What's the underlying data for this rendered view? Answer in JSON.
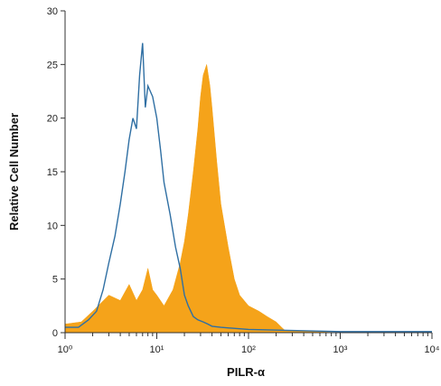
{
  "chart_data": {
    "type": "area",
    "xlabel": "PILR-α",
    "ylabel": "Relative Cell Number",
    "xscale": "log",
    "xlim": [
      1,
      10000
    ],
    "ylim": [
      0,
      30
    ],
    "grid": false,
    "x_tick_labels": [
      "10⁰",
      "10¹",
      "10²",
      "10³",
      "10⁴"
    ],
    "x_tick_values": [
      1,
      10,
      100,
      1000,
      10000
    ],
    "y_tick_values": [
      0,
      5,
      10,
      15,
      20,
      25,
      30
    ],
    "series": [
      {
        "style": "outline",
        "color": "#2f6fa3",
        "x": [
          1.0,
          1.4,
          1.8,
          2.2,
          2.6,
          3.0,
          3.5,
          4.0,
          4.5,
          5.0,
          5.5,
          6.0,
          6.5,
          7.0,
          7.5,
          8.0,
          9.0,
          10.0,
          11.0,
          12.0,
          14.0,
          16.0,
          18.0,
          20.0,
          22.0,
          25.0,
          28.0,
          32.0,
          36.0,
          40.0,
          50.0,
          100.0,
          1000.0,
          10000.0
        ],
        "y": [
          0.5,
          0.5,
          1.2,
          2.0,
          4.0,
          6.5,
          9.0,
          12.0,
          15.0,
          18.0,
          20.0,
          19.0,
          24.0,
          27.0,
          21.0,
          23.0,
          22.0,
          20.0,
          17.0,
          14.0,
          11.0,
          8.0,
          6.0,
          3.5,
          2.5,
          1.5,
          1.2,
          1.0,
          0.8,
          0.6,
          0.5,
          0.3,
          0.1,
          0.1
        ]
      },
      {
        "style": "filled",
        "color": "#f5a31a",
        "x": [
          1.0,
          1.5,
          2.0,
          3.0,
          4.0,
          5.0,
          6.0,
          7.0,
          8.0,
          9.0,
          10.0,
          12.0,
          15.0,
          18.0,
          20.0,
          22.0,
          25.0,
          28.0,
          30.0,
          32.0,
          35.0,
          38.0,
          40.0,
          45.0,
          50.0,
          60.0,
          70.0,
          80.0,
          100.0,
          130.0,
          160.0,
          200.0,
          230.0,
          250.0,
          1000.0,
          10000.0
        ],
        "y": [
          0.8,
          1.0,
          2.0,
          3.5,
          3.0,
          4.5,
          3.0,
          4.0,
          6.0,
          4.0,
          3.5,
          2.5,
          4.0,
          6.5,
          8.5,
          11.0,
          15.0,
          19.0,
          22.0,
          24.0,
          25.0,
          23.0,
          21.0,
          16.0,
          12.0,
          8.0,
          5.0,
          3.5,
          2.5,
          2.0,
          1.5,
          1.0,
          0.5,
          0.2,
          0.0,
          0.0
        ]
      }
    ]
  }
}
